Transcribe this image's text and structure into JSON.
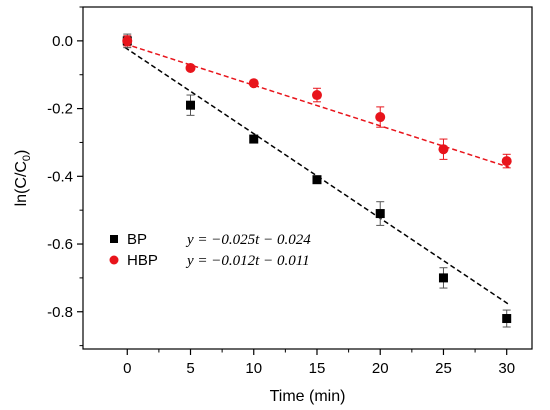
{
  "chart_data": {
    "type": "scatter",
    "xlabel": "Time (min)",
    "ylabel": "ln(C/C",
    "ylabel_sub": "0",
    "ylabel_close": ")",
    "xlim": [
      -3.5,
      32
    ],
    "ylim": [
      -0.91,
      0.1
    ],
    "x_ticks": [
      0,
      5,
      10,
      15,
      20,
      25,
      30
    ],
    "y_ticks": [
      0.0,
      -0.2,
      -0.4,
      -0.6,
      -0.8
    ],
    "y_tick_labels": [
      "0.0",
      "-0.2",
      "-0.4",
      "-0.6",
      "-0.8"
    ],
    "legend_position": "center-left",
    "series": [
      {
        "name": "BP",
        "marker": "square",
        "color": "#000000",
        "x": [
          0,
          5,
          10,
          15,
          20,
          25,
          30
        ],
        "y": [
          0.0,
          -0.19,
          -0.29,
          -0.41,
          -0.51,
          -0.7,
          -0.82
        ],
        "error": [
          0.02,
          0.03,
          0.0,
          0.01,
          0.035,
          0.03,
          0.025
        ],
        "fit": {
          "slope": -0.025,
          "intercept": -0.024,
          "color": "#000000",
          "equation": "y = −0.025t − 0.024"
        }
      },
      {
        "name": "HBP",
        "marker": "circle",
        "color": "#e8141b",
        "x": [
          0,
          5,
          10,
          15,
          20,
          25,
          30
        ],
        "y": [
          0.0,
          -0.08,
          -0.125,
          -0.16,
          -0.225,
          -0.32,
          -0.355
        ],
        "error": [
          0.015,
          0.0,
          0.0,
          0.02,
          0.03,
          0.03,
          0.02
        ],
        "fit": {
          "slope": -0.012,
          "intercept": -0.011,
          "color": "#e8141b",
          "equation": "y = −0.012t − 0.011"
        }
      }
    ]
  }
}
